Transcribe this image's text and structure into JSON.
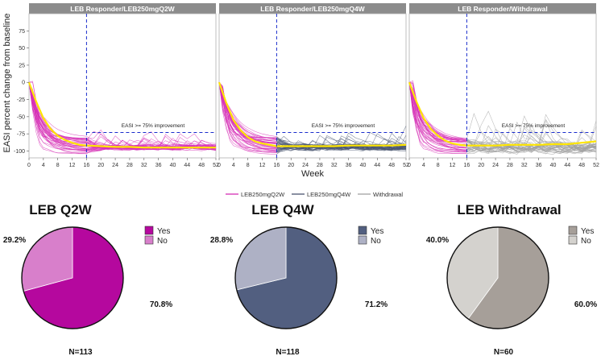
{
  "colors": {
    "q2w": "#d630b5",
    "q4w": "#4a5570",
    "withdrawal": "#a0a0a0",
    "mean": "#ffe600",
    "strip_bg": "#8c8c8c",
    "threshold": "#1a2ccc"
  },
  "chart_data": [
    {
      "type": "line",
      "title": "LEB Responder/LEB250mgQ2W",
      "xlabel": "Week",
      "ylabel": "EASI percent change from baseline",
      "xlim": [
        0,
        52
      ],
      "ylim": [
        -110,
        100
      ],
      "x_ticks": [
        0,
        4,
        8,
        12,
        16,
        20,
        24,
        28,
        32,
        36,
        40,
        44,
        48,
        52
      ],
      "y_ticks": [
        -100,
        -75,
        -50,
        -25,
        0,
        25,
        50,
        75
      ],
      "y_tick_labels": [
        "-100",
        "-75",
        "-50",
        "-25",
        "0",
        "25",
        "50",
        "75"
      ],
      "vline_week": 16,
      "threshold_y": -75,
      "annotation": "EASI >= 75% improvement",
      "series_groups": [
        "LEB250mgQ2W"
      ],
      "mean_series": {
        "name": "Mean",
        "x": [
          0,
          2,
          4,
          6,
          8,
          10,
          12,
          14,
          16,
          20,
          24,
          28,
          32,
          36,
          40,
          44,
          48,
          52
        ],
        "values": [
          0,
          -28,
          -52,
          -68,
          -78,
          -84,
          -88,
          -91,
          -92,
          -93,
          -94,
          -94,
          -95,
          -95,
          -95,
          -95,
          -95,
          -95
        ]
      }
    },
    {
      "type": "line",
      "title": "LEB Responder/LEB250mgQ4W",
      "xlabel": "Week",
      "xlim": [
        0,
        52
      ],
      "ylim": [
        -110,
        100
      ],
      "x_ticks": [
        0,
        4,
        8,
        12,
        16,
        20,
        24,
        28,
        32,
        36,
        40,
        44,
        48,
        52
      ],
      "vline_week": 16,
      "threshold_y": -75,
      "annotation": "EASI >= 75% improvement",
      "series_groups": [
        "LEB250mgQ2W",
        "LEB250mgQ4W"
      ],
      "mean_series": {
        "name": "Mean",
        "x": [
          0,
          2,
          4,
          6,
          8,
          10,
          12,
          14,
          16,
          20,
          24,
          28,
          32,
          36,
          40,
          44,
          48,
          52
        ],
        "values": [
          0,
          -30,
          -55,
          -70,
          -80,
          -86,
          -89,
          -91,
          -93,
          -93,
          -93,
          -93,
          -93,
          -92,
          -92,
          -92,
          -92,
          -91
        ]
      }
    },
    {
      "type": "line",
      "title": "LEB Responder/Withdrawal",
      "xlabel": "Week",
      "xlim": [
        0,
        52
      ],
      "ylim": [
        -110,
        100
      ],
      "x_ticks": [
        0,
        4,
        8,
        12,
        16,
        20,
        24,
        28,
        32,
        36,
        40,
        44,
        48,
        52
      ],
      "vline_week": 16,
      "threshold_y": -75,
      "annotation": "EASI >= 75% improvement",
      "series_groups": [
        "LEB250mgQ2W",
        "Withdrawal"
      ],
      "mean_series": {
        "name": "Mean",
        "x": [
          0,
          2,
          4,
          6,
          8,
          10,
          12,
          14,
          16,
          20,
          24,
          28,
          32,
          36,
          40,
          44,
          48,
          52
        ],
        "values": [
          0,
          -28,
          -52,
          -68,
          -78,
          -85,
          -89,
          -91,
          -92,
          -92,
          -92,
          -91,
          -91,
          -91,
          -90,
          -90,
          -88,
          -86
        ]
      }
    },
    {
      "type": "pie",
      "title": "LEB Q2W",
      "categories": [
        "Yes",
        "No"
      ],
      "values": [
        70.8,
        29.2
      ],
      "value_labels": [
        "70.8%",
        "29.2%"
      ],
      "colors": [
        "#b5089e",
        "#d87fcb"
      ],
      "n_label": "N=113"
    },
    {
      "type": "pie",
      "title": "LEB Q4W",
      "categories": [
        "Yes",
        "No"
      ],
      "values": [
        71.2,
        28.8
      ],
      "value_labels": [
        "71.2%",
        "28.8%"
      ],
      "colors": [
        "#525f80",
        "#aeb1c5"
      ],
      "n_label": "N=118"
    },
    {
      "type": "pie",
      "title": "LEB Withdrawal",
      "categories": [
        "Yes",
        "No"
      ],
      "values": [
        60.0,
        40.0
      ],
      "value_labels": [
        "60.0%",
        "40.0%"
      ],
      "colors": [
        "#a69f99",
        "#d4d2ce"
      ],
      "n_label": "N=60"
    }
  ],
  "legend": {
    "items": [
      {
        "label": "LEB250mgQ2W",
        "color": "#d630b5"
      },
      {
        "label": "LEB250mgQ4W",
        "color": "#4a5570"
      },
      {
        "label": "Withdrawal",
        "color": "#a0a0a0"
      }
    ]
  }
}
